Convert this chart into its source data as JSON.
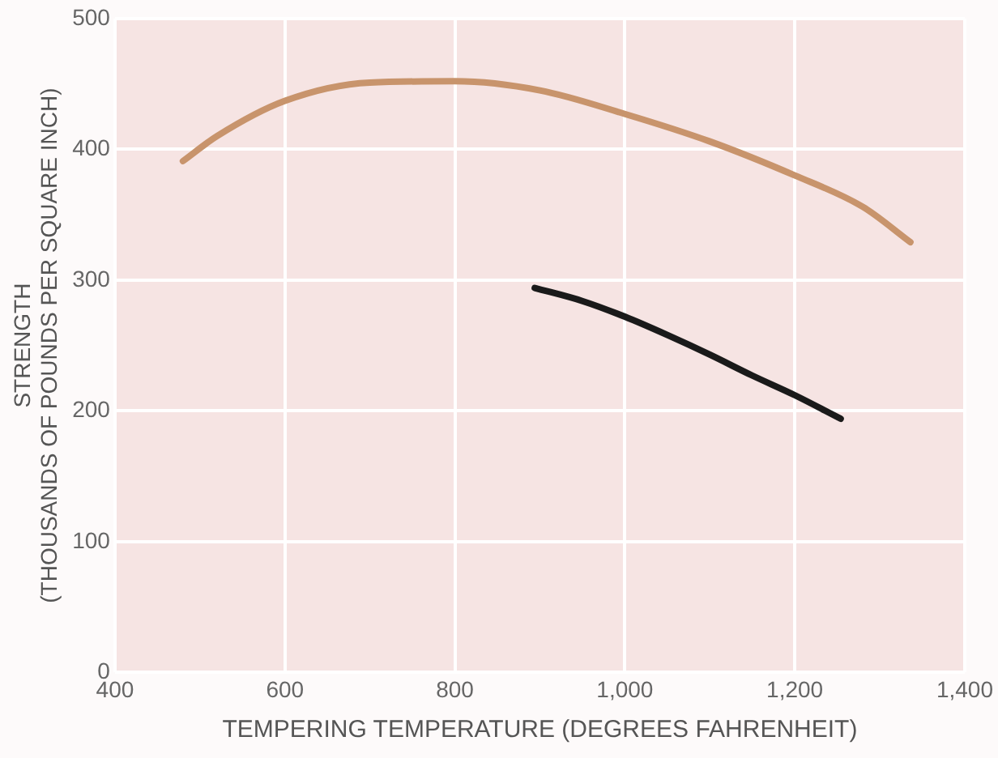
{
  "chart_data": {
    "type": "line",
    "xlabel": "TEMPERING TEMPERATURE (DEGREES FAHRENHEIT)",
    "ylabel": "STRENGTH\n(THOUSANDS OF POUNDS PER SQUARE INCH)",
    "series": [
      {
        "color": "#c8946c",
        "x": [
          480,
          520,
          600,
          700,
          800,
          900,
          1000,
          1100,
          1200,
          1280,
          1336
        ],
        "values": [
          391,
          410,
          437,
          451,
          452,
          445,
          427,
          406,
          380,
          356,
          329
        ]
      },
      {
        "color": "#1a1a1a",
        "x": [
          894,
          950,
          1000,
          1050,
          1100,
          1150,
          1200,
          1254
        ],
        "values": [
          294,
          284,
          272,
          258,
          243,
          227,
          212,
          194
        ]
      }
    ],
    "xlim": [
      400,
      1400
    ],
    "xticks": [
      400,
      600,
      800,
      {
        "value": 1000,
        "label": "1,000"
      },
      {
        "value": 1200,
        "label": "1,200"
      },
      {
        "value": 1400,
        "label": "1,400"
      }
    ],
    "ylim": [
      0,
      500
    ],
    "yticks": [
      0,
      100,
      200,
      300,
      400,
      500
    ],
    "grid": true,
    "marker": "none",
    "line_style": "solid",
    "legend": false
  }
}
